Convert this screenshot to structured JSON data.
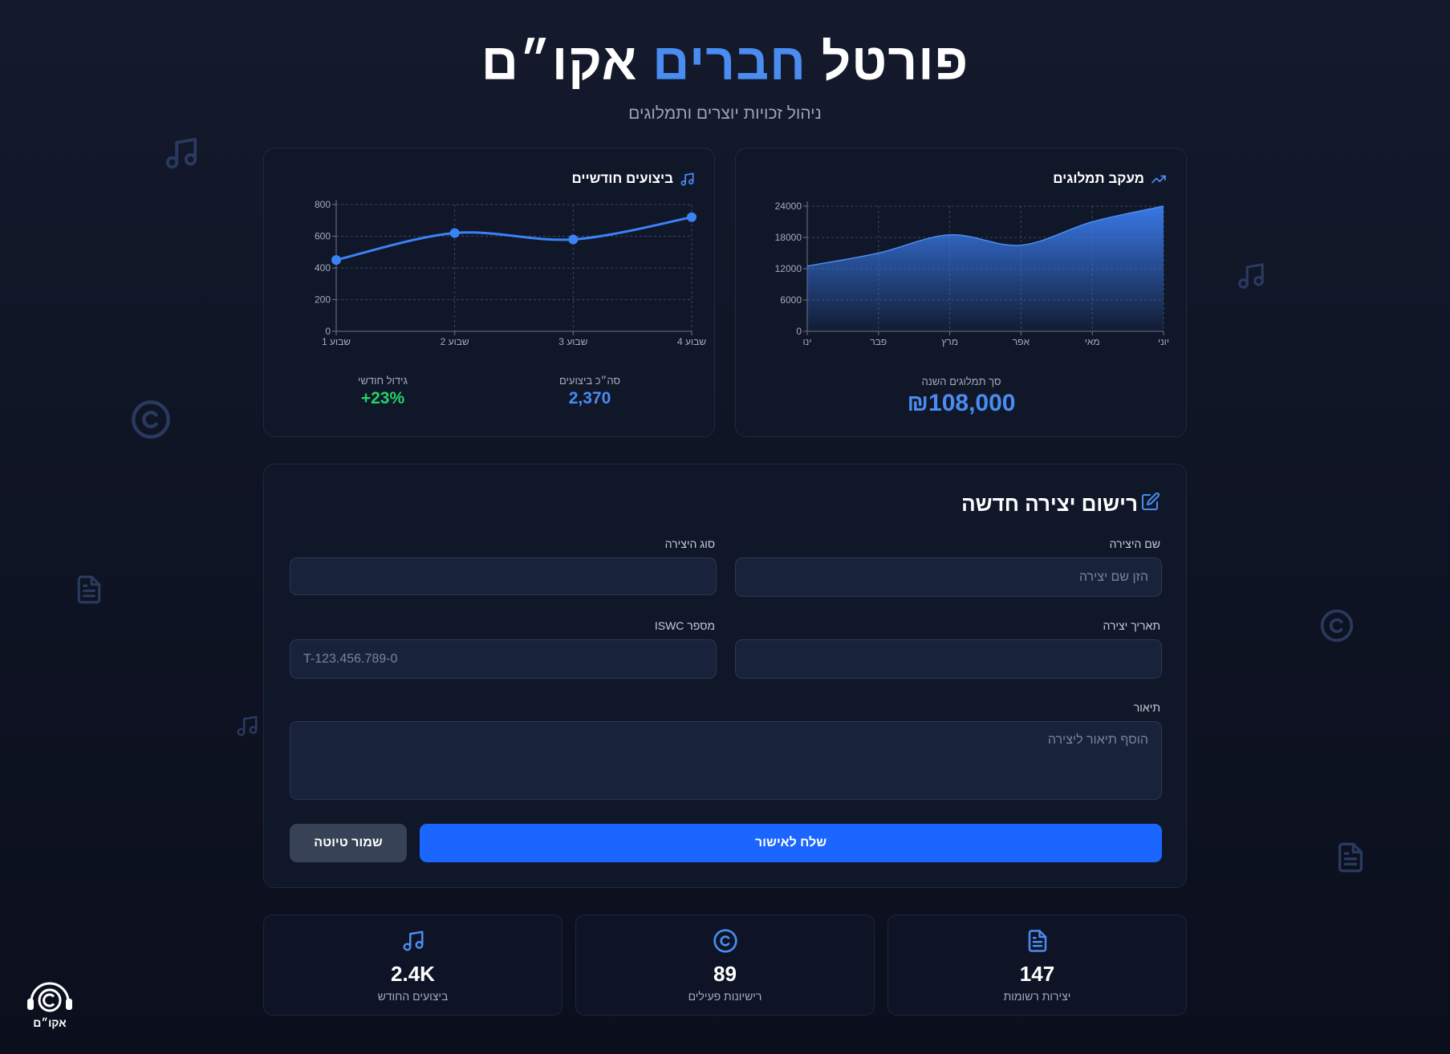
{
  "header": {
    "title_part1": "פורטל",
    "title_accent": "חברים",
    "title_part2": "אקו״ם",
    "subtitle": "ניהול זכויות יוצרים ותמלוגים"
  },
  "colors": {
    "accent": "#4a8cf0",
    "primary_button": "#1a66ff",
    "growth": "#22d36b",
    "background": "#0f1424"
  },
  "performances_card": {
    "title": "ביצועים חודשיים",
    "icon": "music-note-icon",
    "stat_total_label": "סה״כ ביצועים",
    "stat_total_value": "2,370",
    "stat_growth_label": "גידול חודשי",
    "stat_growth_value": "+23%"
  },
  "royalties_card": {
    "title": "מעקב תמלוגים",
    "icon": "trending-up-icon",
    "total_label": "סך תמלוגים השנה",
    "total_value": "₪108,000"
  },
  "form": {
    "title": "רישום יצירה חדשה",
    "icon": "edit-icon",
    "work_name_label": "שם היצירה",
    "work_name_placeholder": "הזן שם יצירה",
    "work_type_label": "סוג היצירה",
    "work_type_value": "",
    "creation_date_label": "תאריך יצירה",
    "creation_date_value": "",
    "iswc_label": "מספר ISWC",
    "iswc_placeholder": "T-123.456.789-0",
    "description_label": "תיאור",
    "description_placeholder": "הוסף תיאור ליצירה",
    "submit_label": "שלח לאישור",
    "save_draft_label": "שמור טיוטה"
  },
  "stats": [
    {
      "icon": "document-icon",
      "value": "147",
      "label": "יצירות רשומות"
    },
    {
      "icon": "copyright-icon",
      "value": "89",
      "label": "רישיונות פעילים"
    },
    {
      "icon": "music-note-icon",
      "value": "2.4K",
      "label": "ביצועים החודש"
    }
  ],
  "logo": {
    "text": "אקו״ם",
    "icon": "headphones-copyright-icon"
  },
  "chart_data": [
    {
      "type": "line",
      "title": "ביצועים חודשיים",
      "categories": [
        "שבוע 1",
        "שבוע 2",
        "שבוע 3",
        "שבוע 4"
      ],
      "series": [
        {
          "values": [
            450,
            620,
            580,
            720
          ]
        }
      ],
      "ylim": [
        0,
        800
      ],
      "yticks": [
        0,
        200,
        400,
        600,
        800
      ],
      "grid": true
    },
    {
      "type": "area",
      "title": "מעקב תמלוגים",
      "categories": [
        "ינו",
        "פבר",
        "מרץ",
        "אפר",
        "מאי",
        "יוני"
      ],
      "series": [
        {
          "values": [
            12500,
            15000,
            18500,
            16500,
            21000,
            24000
          ]
        }
      ],
      "ylim": [
        0,
        24000
      ],
      "yticks": [
        0,
        6000,
        12000,
        18000,
        24000
      ],
      "grid": true
    }
  ]
}
